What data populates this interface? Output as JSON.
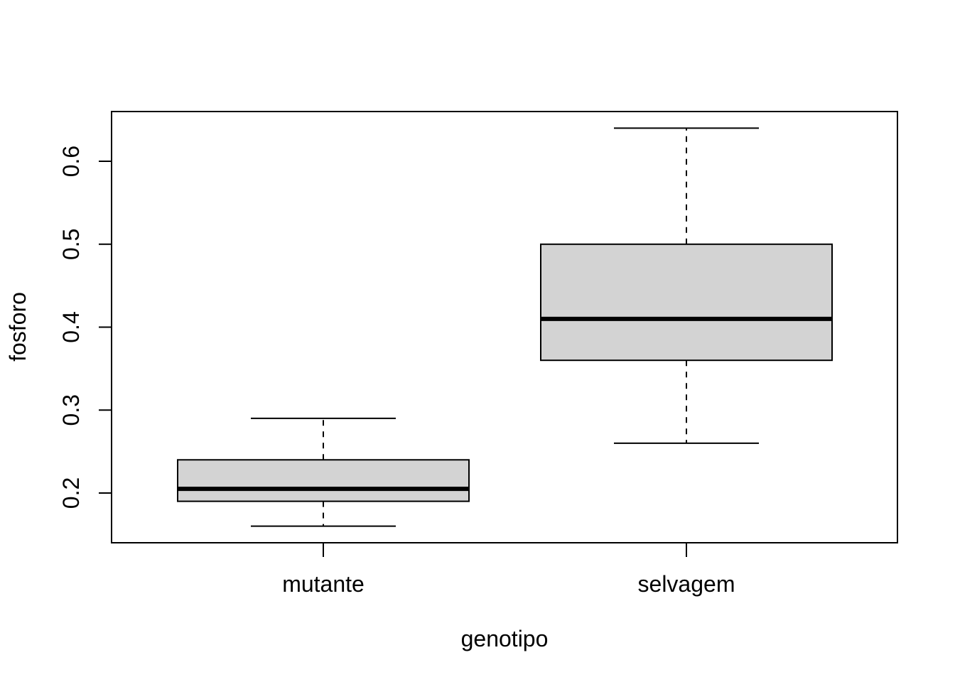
{
  "chart_data": {
    "type": "boxplot",
    "title": "",
    "xlabel": "genotipo",
    "ylabel": "fosforo",
    "categories": [
      "mutante",
      "selvagem"
    ],
    "boxes": [
      {
        "category": "mutante",
        "whisker_low": 0.16,
        "q1": 0.19,
        "median": 0.205,
        "q3": 0.24,
        "whisker_high": 0.29
      },
      {
        "category": "selvagem",
        "whisker_low": 0.26,
        "q1": 0.36,
        "median": 0.41,
        "q3": 0.5,
        "whisker_high": 0.64
      }
    ],
    "yticks": [
      "0.2",
      "0.3",
      "0.4",
      "0.5",
      "0.6"
    ],
    "ylim": [
      0.14,
      0.66
    ],
    "box_fill": "#d3d3d3",
    "line_color": "#000000",
    "grid": false,
    "legend": "none"
  }
}
